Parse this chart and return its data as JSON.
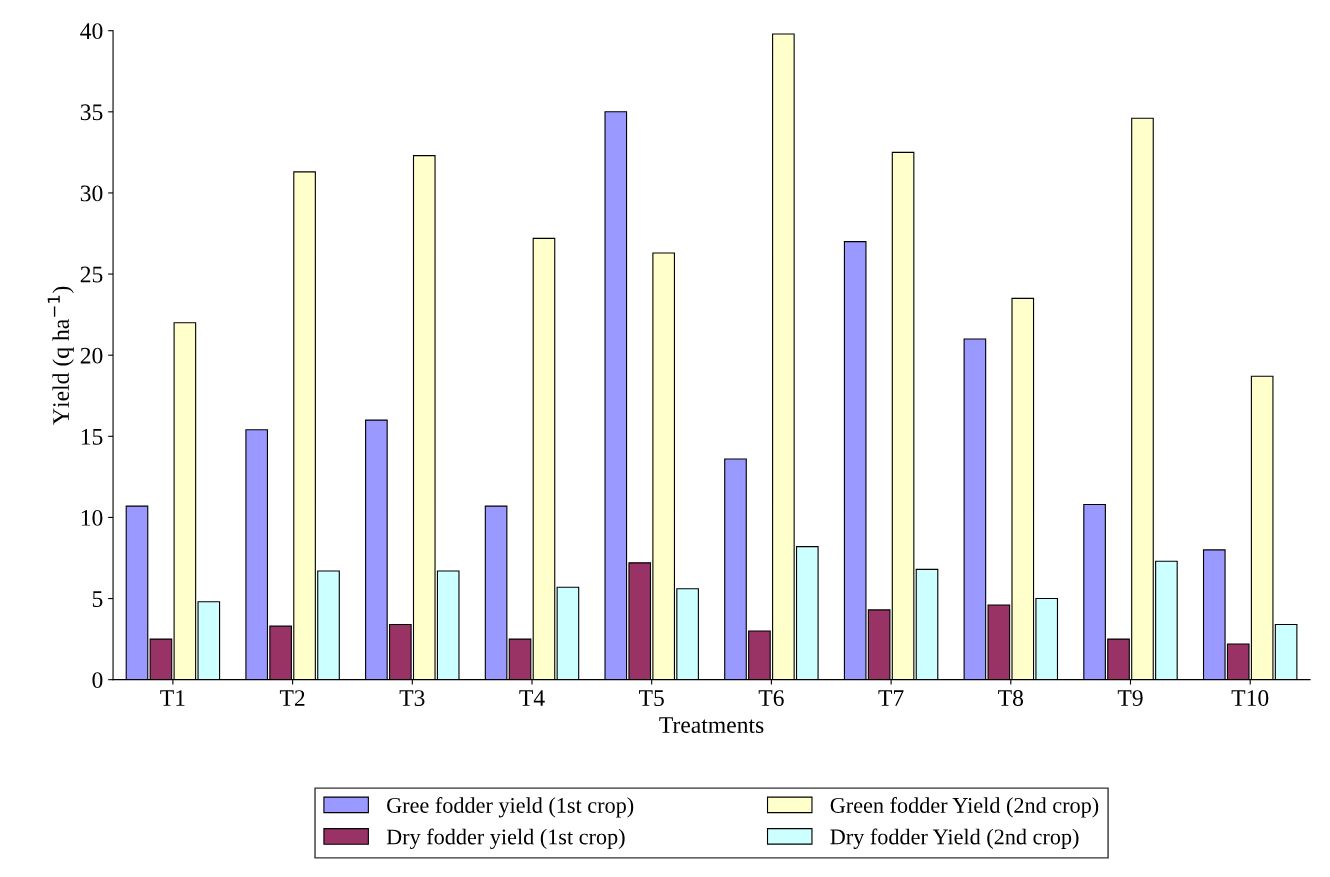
{
  "chart_data": {
    "type": "bar",
    "xlabel": "Treatments",
    "ylabel": "Yield (q ha$^{−1}$)",
    "categories": [
      "T1",
      "T2",
      "T3",
      "T4",
      "T5",
      "T6",
      "T7",
      "T8",
      "T9",
      "T10"
    ],
    "series": [
      {
        "name": "Gree fodder yield (1st crop)",
        "color": "#9999ff",
        "values": [
          10.7,
          15.4,
          16.0,
          10.7,
          35.0,
          13.6,
          27.0,
          21.0,
          10.8,
          8.0
        ]
      },
      {
        "name": "Dry fodder yield (1st crop)",
        "color": "#993366",
        "values": [
          2.5,
          3.3,
          3.4,
          2.5,
          7.2,
          3.0,
          4.3,
          4.6,
          2.5,
          2.2
        ]
      },
      {
        "name": "Green fodder Yield (2nd crop)",
        "color": "#ffffcc",
        "values": [
          22.0,
          31.3,
          32.3,
          27.2,
          26.3,
          39.8,
          32.5,
          23.5,
          34.6,
          18.7
        ]
      },
      {
        "name": "Dry fodder Yield (2nd crop)",
        "color": "#ccffff",
        "values": [
          4.8,
          6.7,
          6.7,
          5.7,
          5.6,
          8.2,
          6.8,
          5.0,
          7.3,
          3.4
        ]
      }
    ],
    "ylim": [
      0,
      40
    ],
    "yticks": [
      0,
      5,
      10,
      15,
      20,
      25,
      30,
      35,
      40
    ],
    "grid": false,
    "legend": "bottom"
  }
}
